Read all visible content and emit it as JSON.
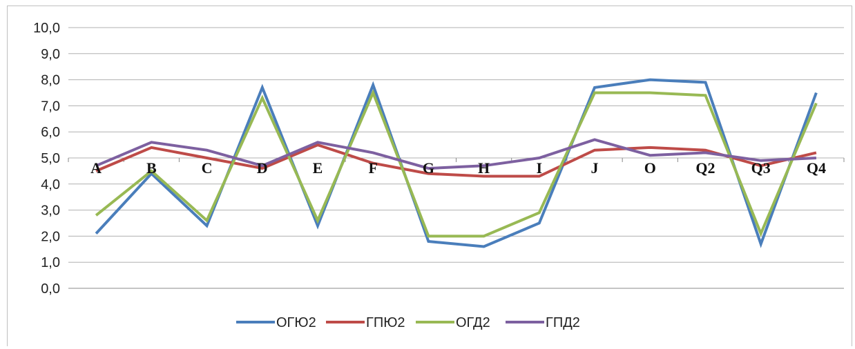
{
  "chart_data": {
    "type": "line",
    "categories": [
      "A",
      "B",
      "C",
      "D",
      "E",
      "F",
      "G",
      "H",
      "I",
      "J",
      "O",
      "Q2",
      "Q3",
      "Q4"
    ],
    "ylim": [
      0,
      10
    ],
    "yticks": [
      "0,0",
      "1,0",
      "2,0",
      "3,0",
      "4,0",
      "5,0",
      "6,0",
      "7,0",
      "8,0",
      "9,0",
      "10,0"
    ],
    "category_labels_at": 5,
    "grid": true,
    "legend_position": "bottom",
    "series": [
      {
        "name": "ОГЮ2",
        "color": "#4a7ebb",
        "values": [
          2.1,
          4.4,
          2.4,
          7.7,
          2.4,
          7.8,
          1.8,
          1.6,
          2.5,
          7.7,
          8.0,
          7.9,
          1.7,
          7.5
        ]
      },
      {
        "name": "ГПЮ2",
        "color": "#be4b48",
        "values": [
          4.5,
          5.4,
          5.0,
          4.6,
          5.5,
          4.8,
          4.4,
          4.3,
          4.3,
          5.3,
          5.4,
          5.3,
          4.7,
          5.2
        ]
      },
      {
        "name": "ОГД2",
        "color": "#98b954",
        "values": [
          2.8,
          4.5,
          2.6,
          7.3,
          2.6,
          7.5,
          2.0,
          2.0,
          2.9,
          7.5,
          7.5,
          7.4,
          2.1,
          7.1
        ]
      },
      {
        "name": "ГПД2",
        "color": "#7d60a0",
        "values": [
          4.7,
          5.6,
          5.3,
          4.7,
          5.6,
          5.2,
          4.6,
          4.7,
          5.0,
          5.7,
          5.1,
          5.2,
          4.9,
          5.0
        ]
      }
    ]
  }
}
